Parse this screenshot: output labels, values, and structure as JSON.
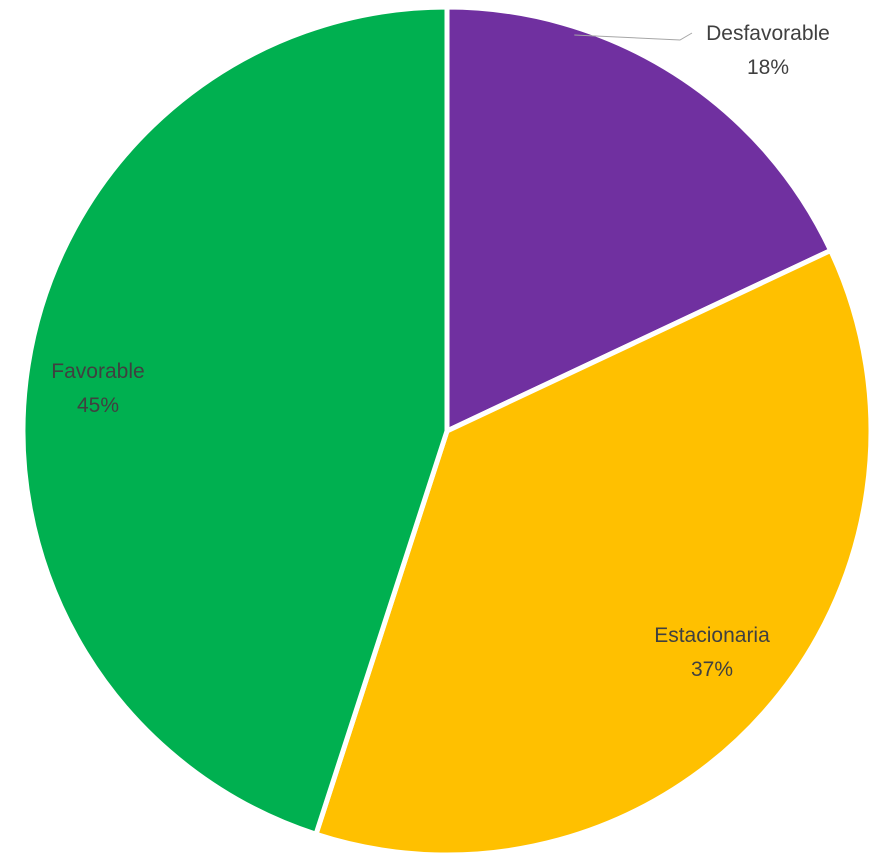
{
  "chart_data": {
    "type": "pie",
    "title": "",
    "start_angle_deg": 0,
    "direction": "clockwise",
    "slices": [
      {
        "label": "Desfavorable",
        "value": 18,
        "percent_label": "18%",
        "color": "#7030A0"
      },
      {
        "label": "Estacionaria",
        "value": 37,
        "percent_label": "37%",
        "color": "#FFC000"
      },
      {
        "label": "Favorable",
        "value": 45,
        "percent_label": "45%",
        "color": "#00B050"
      }
    ],
    "legend": "none",
    "data_labels": "category-and-percent"
  }
}
